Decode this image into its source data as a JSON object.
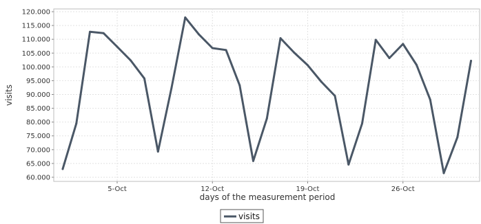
{
  "chart_data": {
    "type": "line",
    "title": "",
    "xlabel": "days of the measurement period",
    "ylabel": "visits",
    "x": [
      "1-Oct",
      "2-Oct",
      "3-Oct",
      "4-Oct",
      "5-Oct",
      "6-Oct",
      "7-Oct",
      "8-Oct",
      "9-Oct",
      "10-Oct",
      "11-Oct",
      "12-Oct",
      "13-Oct",
      "14-Oct",
      "15-Oct",
      "16-Oct",
      "17-Oct",
      "18-Oct",
      "19-Oct",
      "20-Oct",
      "21-Oct",
      "22-Oct",
      "23-Oct",
      "24-Oct",
      "25-Oct",
      "26-Oct",
      "27-Oct",
      "28-Oct",
      "29-Oct",
      "30-Oct",
      "31-Oct"
    ],
    "x_ticks": [
      "5-Oct",
      "12-Oct",
      "19-Oct",
      "26-Oct"
    ],
    "series": [
      {
        "name": "visits",
        "color": "#4a5766",
        "values": [
          63000,
          79500,
          112700,
          112200,
          107300,
          102300,
          95800,
          69300,
          92500,
          117900,
          111800,
          106800,
          106100,
          93300,
          65900,
          81300,
          110400,
          105200,
          100600,
          94600,
          89500,
          64600,
          79500,
          109800,
          103200,
          108300,
          100700,
          88100,
          61500,
          74500,
          102200
        ]
      }
    ],
    "y_ticks": [
      "60.000",
      "65.000",
      "70.000",
      "75.000",
      "80.000",
      "85.000",
      "90.000",
      "95.000",
      "100.000",
      "105.000",
      "110.000",
      "115.000",
      "120.000"
    ],
    "ylim": [
      58500,
      121000
    ],
    "grid": true,
    "legend": "bottom"
  }
}
